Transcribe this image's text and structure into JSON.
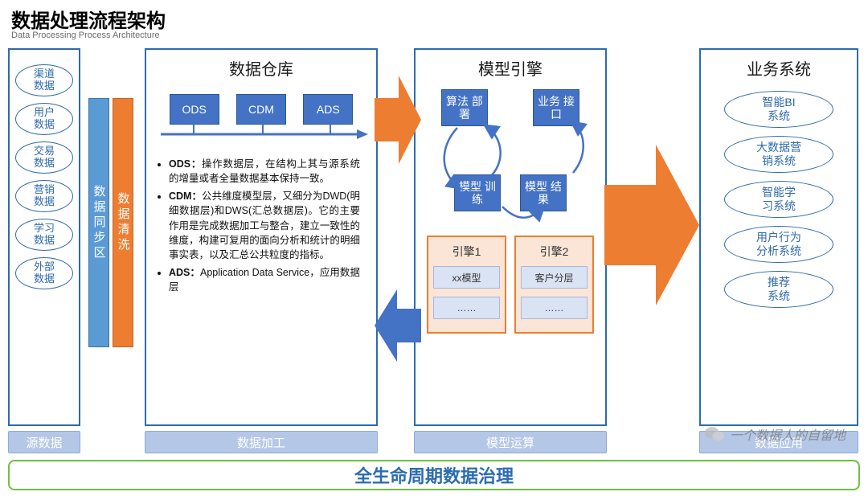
{
  "title": "数据处理流程架构",
  "subtitle": "Data Processing Process Architecture",
  "colors": {
    "blue": "#4472c4",
    "blue_border": "#2e5597",
    "col_border": "#2b6cb0",
    "orange": "#ed7d31",
    "orange_light": "#fbe5d6",
    "label_bg": "#b4c7e7",
    "cell_bg": "#dae3f3",
    "green": "#6fbf44",
    "text": "#111111"
  },
  "source": {
    "items": [
      "渠道\n数据",
      "用户\n数据",
      "交易\n数据",
      "营销\n数据",
      "学习\n数据",
      "外部\n数据"
    ]
  },
  "strips": {
    "sync": "数据同步区",
    "clean": "数据清洗"
  },
  "warehouse": {
    "title": "数据仓库",
    "boxes": [
      "ODS",
      "CDM",
      "ADS"
    ],
    "bullets": [
      {
        "k": "ODS：",
        "t": "操作数据层，在结构上其与源系统的增量或者全量数据基本保持一致。"
      },
      {
        "k": "CDM：",
        "t": "公共维度模型层，又细分为DWD(明细数据层)和DWS(汇总数据层)。它的主要作用是完成数据加工与整合，建立一致性的维度，构建可复用的面向分析和统计的明细事实表，以及汇总公共粒度的指标。"
      },
      {
        "k": "ADS：",
        "t": "Application Data Service，应用数据层"
      }
    ]
  },
  "model": {
    "title": "模型引擎",
    "nodes": {
      "tl": "算法\n部署",
      "tr": "业务\n接口",
      "bl": "模型\n训练",
      "br": "模型\n结果"
    },
    "engines": [
      {
        "title": "引擎1",
        "cells": [
          "xx模型",
          "……"
        ]
      },
      {
        "title": "引擎2",
        "cells": [
          "客户分层",
          "……"
        ]
      }
    ]
  },
  "biz": {
    "title": "业务系统",
    "items": [
      "智能BI\n系统",
      "大数据营\n销系统",
      "智能学\n习系统",
      "用户行为\n分析系统",
      "推荐\n系统"
    ]
  },
  "bottom_labels": {
    "src": "源数据",
    "wh": "数据加工",
    "model": "模型运算",
    "biz": "数据应用"
  },
  "governance": "全生命周期数据治理",
  "watermark": "一个数据人的自留地"
}
